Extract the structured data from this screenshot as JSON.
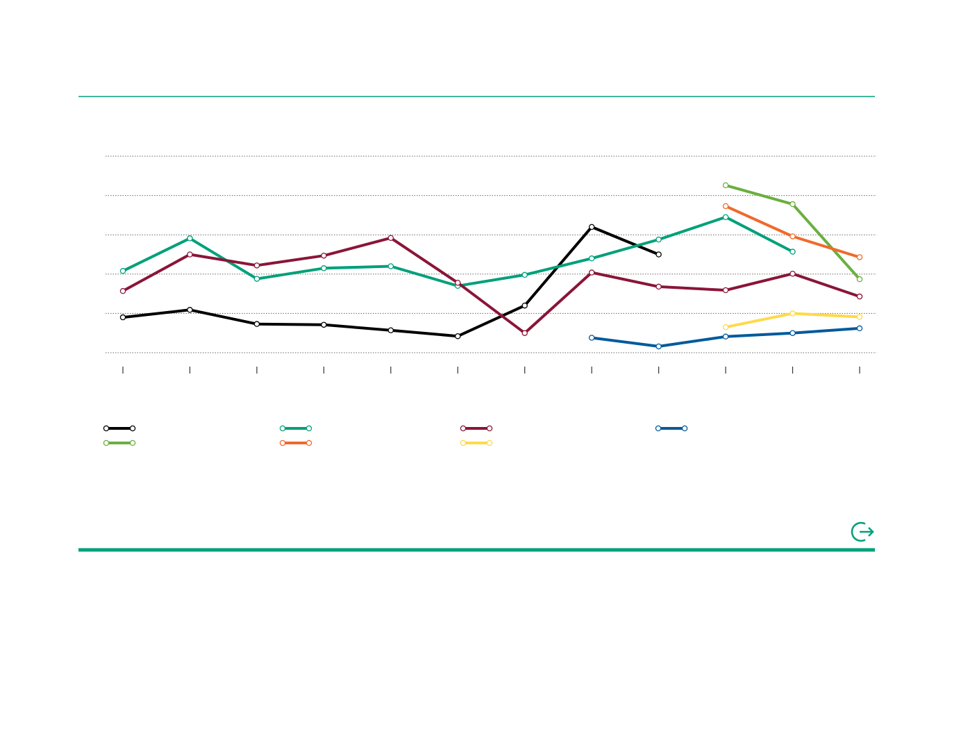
{
  "chart_data": {
    "type": "line",
    "title": "",
    "xlabel": "",
    "ylabel": "",
    "x": [
      1,
      2,
      3,
      4,
      5,
      6,
      7,
      8,
      9,
      10,
      11,
      12
    ],
    "ylim": [
      0,
      5
    ],
    "y_gridlines": [
      0,
      1,
      2,
      3,
      4,
      5
    ],
    "grid": true,
    "legend_position": "bottom",
    "series": [
      {
        "color": "#000000",
        "values": [
          0.9,
          1.09,
          0.73,
          0.71,
          0.57,
          0.42,
          1.2,
          3.2,
          2.5,
          null,
          null,
          null
        ]
      },
      {
        "color": "#00a07a",
        "values": [
          2.08,
          2.91,
          1.88,
          2.15,
          2.2,
          1.7,
          1.98,
          2.4,
          2.88,
          3.45,
          2.57,
          null
        ]
      },
      {
        "color": "#8a1538",
        "values": [
          1.57,
          2.5,
          2.22,
          2.47,
          2.92,
          1.78,
          0.5,
          2.04,
          1.68,
          1.59,
          2.01,
          1.43
        ]
      },
      {
        "color": "#005a9c",
        "values": [
          null,
          null,
          null,
          null,
          null,
          null,
          null,
          0.38,
          0.16,
          0.41,
          0.5,
          0.62
        ]
      },
      {
        "color": "#6aaf3f",
        "values": [
          null,
          null,
          null,
          null,
          null,
          null,
          null,
          null,
          null,
          4.26,
          3.78,
          1.87
        ]
      },
      {
        "color": "#ef6a2c",
        "values": [
          null,
          null,
          null,
          null,
          null,
          null,
          null,
          null,
          null,
          3.73,
          2.96,
          2.43
        ]
      },
      {
        "color": "#ffd94a",
        "values": [
          null,
          null,
          null,
          null,
          null,
          null,
          null,
          null,
          null,
          0.65,
          1.0,
          0.91
        ]
      }
    ]
  },
  "export": {
    "icon": "export-icon",
    "color": "#00a07a"
  },
  "colors": {
    "accent": "#00a07a",
    "grid": "#666666",
    "axis": "#333333"
  }
}
